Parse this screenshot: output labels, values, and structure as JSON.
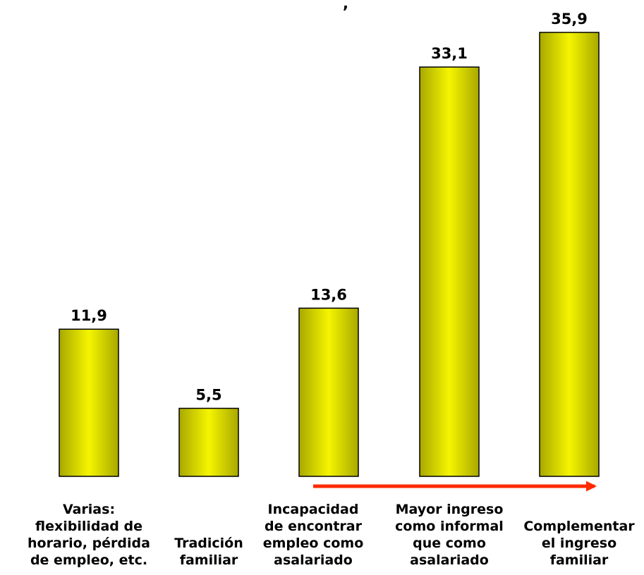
{
  "chart_data": {
    "type": "bar",
    "title_fragment": ",",
    "categories": [
      [
        "Varias:",
        "flexibilidad de",
        "horario, pérdida",
        "de empleo, etc."
      ],
      [
        "Tradición",
        "familiar"
      ],
      [
        "Incapacidad",
        "de encontrar",
        "empleo como",
        "asalariado"
      ],
      [
        "Mayor ingreso",
        "como informal",
        "que como",
        "asalariado"
      ],
      [
        "Complementar",
        "el ingreso",
        "familiar"
      ]
    ],
    "values": [
      11.9,
      5.5,
      13.6,
      33.1,
      35.9
    ],
    "value_labels": [
      "11,9",
      "5,5",
      "13,6",
      "33,1",
      "35,9"
    ],
    "ylim": [
      0,
      35.9
    ],
    "grid": false,
    "legend": "none",
    "bar_color": "#f5f500",
    "bar_color_dark": "#a8a800",
    "arrow": {
      "from_category": 2,
      "to_category": 4,
      "color": "#ff2a00"
    }
  }
}
